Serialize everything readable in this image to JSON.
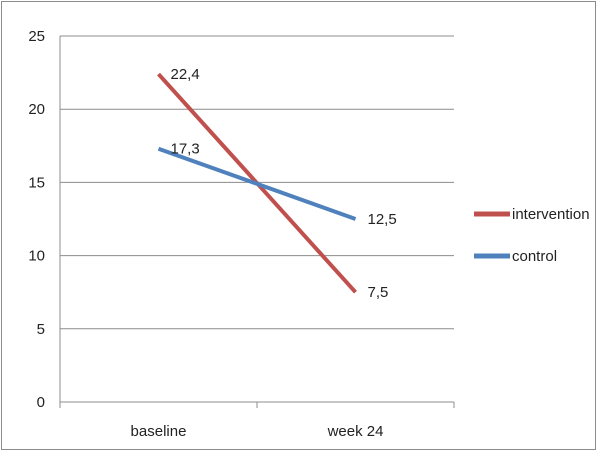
{
  "chart_data": {
    "type": "line",
    "title": "",
    "xlabel": "",
    "ylabel": "",
    "categories": [
      "baseline",
      "week 24"
    ],
    "ylim": [
      0,
      25
    ],
    "yticks": [
      0,
      5,
      10,
      15,
      20,
      25
    ],
    "grid": true,
    "legend_position": "right",
    "series": [
      {
        "name": "intervention",
        "values": [
          22.4,
          7.5
        ],
        "labels": [
          "22,4",
          "7,5"
        ],
        "color": "#c0504d"
      },
      {
        "name": "control",
        "values": [
          17.3,
          12.5
        ],
        "labels": [
          "17,3",
          "12,5"
        ],
        "color": "#4f81bd"
      }
    ]
  }
}
